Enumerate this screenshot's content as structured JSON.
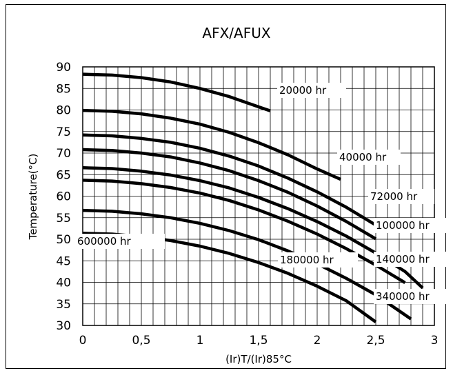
{
  "chart_data": {
    "type": "line",
    "title": "AFX/AFUX",
    "xlabel": "(Ir)T/(Ir)85°C",
    "ylabel": "Temperature(°C)",
    "xlim": [
      0,
      3
    ],
    "ylim": [
      30,
      90
    ],
    "x_ticks": [
      "0",
      "0,5",
      "1",
      "1,5",
      "2",
      "2,5",
      "3"
    ],
    "y_ticks": [
      "30",
      "35",
      "40",
      "45",
      "50",
      "55",
      "60",
      "65",
      "70",
      "75",
      "80",
      "85",
      "90"
    ],
    "grid": true,
    "series": [
      {
        "name": "20000 hr",
        "x": [
          0,
          0.25,
          0.5,
          0.75,
          1,
          1.25,
          1.6
        ],
        "y": [
          88.3,
          88.1,
          87.5,
          86.5,
          85.0,
          83.1,
          79.8
        ]
      },
      {
        "name": "40000 hr",
        "x": [
          0,
          0.25,
          0.5,
          0.75,
          1,
          1.25,
          1.5,
          1.75,
          2,
          2.2
        ],
        "y": [
          79.9,
          79.7,
          79.1,
          78.1,
          76.7,
          74.8,
          72.4,
          69.6,
          66.3,
          63.9
        ]
      },
      {
        "name": "72000 hr",
        "x": [
          0,
          0.25,
          0.5,
          0.75,
          1,
          1.25,
          1.5,
          1.75,
          2,
          2.25,
          2.5
        ],
        "y": [
          74.2,
          74.0,
          73.4,
          72.5,
          71.1,
          69.3,
          67.0,
          64.2,
          61.0,
          57.4,
          53.3
        ]
      },
      {
        "name": "100000 hr",
        "x": [
          0,
          0.25,
          0.5,
          0.75,
          1,
          1.25,
          1.5,
          1.75,
          2,
          2.25,
          2.5
        ],
        "y": [
          70.8,
          70.6,
          70.0,
          69.1,
          67.7,
          65.9,
          63.6,
          60.9,
          57.7,
          54.1,
          50.1
        ]
      },
      {
        "name": "140000 hr",
        "x": [
          0,
          0.25,
          0.5,
          0.75,
          1,
          1.25,
          1.5,
          1.75,
          2,
          2.25,
          2.5,
          2.75,
          2.9
        ],
        "y": [
          66.6,
          66.4,
          65.8,
          64.9,
          63.6,
          61.9,
          59.7,
          57.1,
          54.1,
          50.7,
          46.8,
          42.5,
          38.7
        ]
      },
      {
        "name": "180000 hr",
        "x": [
          0,
          0.25,
          0.5,
          0.75,
          1,
          1.25,
          1.5,
          1.75,
          2,
          2.25,
          2.5,
          2.75
        ],
        "y": [
          63.7,
          63.5,
          62.9,
          62.0,
          60.7,
          59.0,
          56.8,
          54.2,
          51.2,
          47.8,
          44.0,
          39.9
        ]
      },
      {
        "name": "340000 hr",
        "x": [
          0,
          0.25,
          0.5,
          0.75,
          1,
          1.25,
          1.5,
          1.75,
          2,
          2.25,
          2.5,
          2.8
        ],
        "y": [
          56.7,
          56.5,
          55.9,
          55.0,
          53.7,
          52.0,
          49.9,
          47.3,
          44.3,
          40.9,
          37.1,
          31.5
        ]
      },
      {
        "name": "600000 hr",
        "x": [
          0,
          0.25,
          0.5,
          0.75,
          1,
          1.25,
          1.5,
          1.75,
          2,
          2.25,
          2.5
        ],
        "y": [
          51.4,
          51.2,
          50.6,
          49.7,
          48.4,
          46.7,
          44.6,
          42.1,
          39.1,
          35.7,
          30.8
        ]
      }
    ]
  }
}
